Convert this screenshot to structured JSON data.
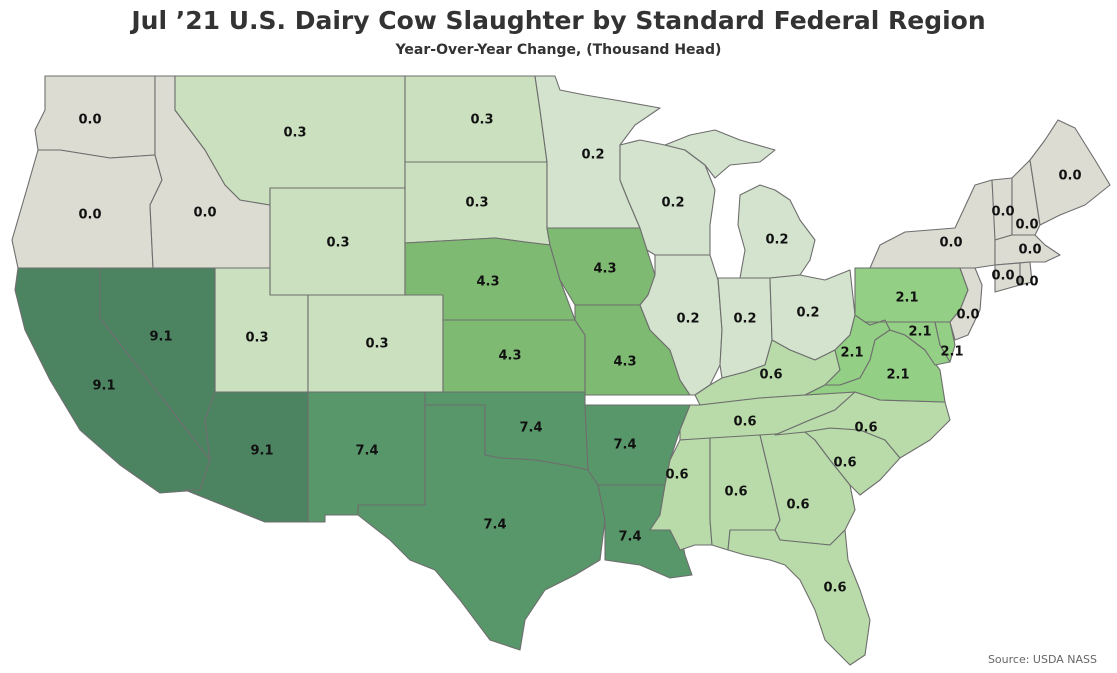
{
  "title": "Jul ’21 U.S. Dairy Cow Slaughter by Standard Federal Region",
  "subtitle": "Year-Over-Year Change, (Thousand Head)",
  "source": "Source: USDA NASS",
  "colors": {
    "0.0": "#dcdcd3",
    "0.2": "#d3e3cd",
    "0.3": "#cbe0bf",
    "0.6": "#b8dba9",
    "2.1": "#93cf84",
    "4.3": "#7fba73",
    "7.4": "#58976a",
    "9.1": "#4c8462"
  },
  "map_data": {
    "type": "choropleth",
    "unit": "Thousand Head",
    "regions": [
      {
        "region": 1,
        "value": "0.0",
        "states": [
          "Maine",
          "New Hampshire",
          "Vermont",
          "Massachusetts",
          "Rhode Island",
          "Connecticut"
        ]
      },
      {
        "region": 2,
        "value": "0.0",
        "states": [
          "New York",
          "New Jersey"
        ]
      },
      {
        "region": 3,
        "value": "2.1",
        "states": [
          "Pennsylvania",
          "West Virginia",
          "Virginia",
          "Maryland",
          "Delaware"
        ]
      },
      {
        "region": 4,
        "value": "0.6",
        "states": [
          "Kentucky",
          "Tennessee",
          "North Carolina",
          "South Carolina",
          "Georgia",
          "Florida",
          "Alabama",
          "Mississippi"
        ]
      },
      {
        "region": 5,
        "value": "0.2",
        "states": [
          "Minnesota",
          "Wisconsin",
          "Michigan",
          "Illinois",
          "Indiana",
          "Ohio"
        ]
      },
      {
        "region": 6,
        "value": "7.4",
        "states": [
          "New Mexico",
          "Texas",
          "Oklahoma",
          "Arkansas",
          "Louisiana"
        ]
      },
      {
        "region": 7,
        "value": "4.3",
        "states": [
          "Nebraska",
          "Iowa",
          "Kansas",
          "Missouri"
        ]
      },
      {
        "region": 8,
        "value": "0.3",
        "states": [
          "Montana",
          "North Dakota",
          "South Dakota",
          "Wyoming",
          "Utah",
          "Colorado"
        ]
      },
      {
        "region": 9,
        "value": "9.1",
        "states": [
          "California",
          "Nevada",
          "Arizona"
        ]
      },
      {
        "region": 10,
        "value": "0.0",
        "states": [
          "Washington",
          "Oregon",
          "Idaho"
        ]
      }
    ]
  },
  "states": {
    "WA": {
      "name": "Washington",
      "value": "0.0"
    },
    "OR": {
      "name": "Oregon",
      "value": "0.0"
    },
    "ID": {
      "name": "Idaho",
      "value": "0.0"
    },
    "MT": {
      "name": "Montana",
      "value": "0.3"
    },
    "WY": {
      "name": "Wyoming",
      "value": "0.3"
    },
    "ND": {
      "name": "North Dakota",
      "value": "0.3"
    },
    "SD": {
      "name": "South Dakota",
      "value": "0.3"
    },
    "UT": {
      "name": "Utah",
      "value": "0.3"
    },
    "CO": {
      "name": "Colorado",
      "value": "0.3"
    },
    "NE": {
      "name": "Nebraska",
      "value": "4.3"
    },
    "KS": {
      "name": "Kansas",
      "value": "4.3"
    },
    "IA": {
      "name": "Iowa",
      "value": "4.3"
    },
    "MO": {
      "name": "Missouri",
      "value": "4.3"
    },
    "CA": {
      "name": "California",
      "value": "9.1"
    },
    "NV": {
      "name": "Nevada",
      "value": "9.1"
    },
    "AZ": {
      "name": "Arizona",
      "value": "9.1"
    },
    "NM": {
      "name": "New Mexico",
      "value": "7.4"
    },
    "TX": {
      "name": "Texas",
      "value": "7.4"
    },
    "OK": {
      "name": "Oklahoma",
      "value": "7.4"
    },
    "AR": {
      "name": "Arkansas",
      "value": "7.4"
    },
    "LA": {
      "name": "Louisiana",
      "value": "7.4"
    },
    "MN": {
      "name": "Minnesota",
      "value": "0.2"
    },
    "WI": {
      "name": "Wisconsin",
      "value": "0.2"
    },
    "MI": {
      "name": "Michigan",
      "value": "0.2"
    },
    "IL": {
      "name": "Illinois",
      "value": "0.2"
    },
    "IN": {
      "name": "Indiana",
      "value": "0.2"
    },
    "OH": {
      "name": "Ohio",
      "value": "0.2"
    },
    "KY": {
      "name": "Kentucky",
      "value": "0.6"
    },
    "TN": {
      "name": "Tennessee",
      "value": "0.6"
    },
    "MS": {
      "name": "Mississippi",
      "value": "0.6"
    },
    "AL": {
      "name": "Alabama",
      "value": "0.6"
    },
    "GA": {
      "name": "Georgia",
      "value": "0.6"
    },
    "FL": {
      "name": "Florida",
      "value": "0.6"
    },
    "SC": {
      "name": "South Carolina",
      "value": "0.6"
    },
    "NC": {
      "name": "North Carolina",
      "value": "0.6"
    },
    "PA": {
      "name": "Pennsylvania",
      "value": "2.1"
    },
    "WV": {
      "name": "West Virginia",
      "value": "2.1"
    },
    "VA": {
      "name": "Virginia",
      "value": "2.1"
    },
    "MD": {
      "name": "Maryland",
      "value": "2.1"
    },
    "DE": {
      "name": "Delaware",
      "value": "2.1"
    },
    "NY": {
      "name": "New York",
      "value": "0.0"
    },
    "NJ": {
      "name": "New Jersey",
      "value": "0.0"
    },
    "VT": {
      "name": "Vermont",
      "value": "0.0"
    },
    "NH": {
      "name": "New Hampshire",
      "value": "0.0"
    },
    "ME": {
      "name": "Maine",
      "value": "0.0"
    },
    "MA": {
      "name": "Massachusetts",
      "value": "0.0"
    },
    "CT": {
      "name": "Connecticut",
      "value": "0.0"
    },
    "RI": {
      "name": "Rhode Island",
      "value": "0.0"
    }
  }
}
